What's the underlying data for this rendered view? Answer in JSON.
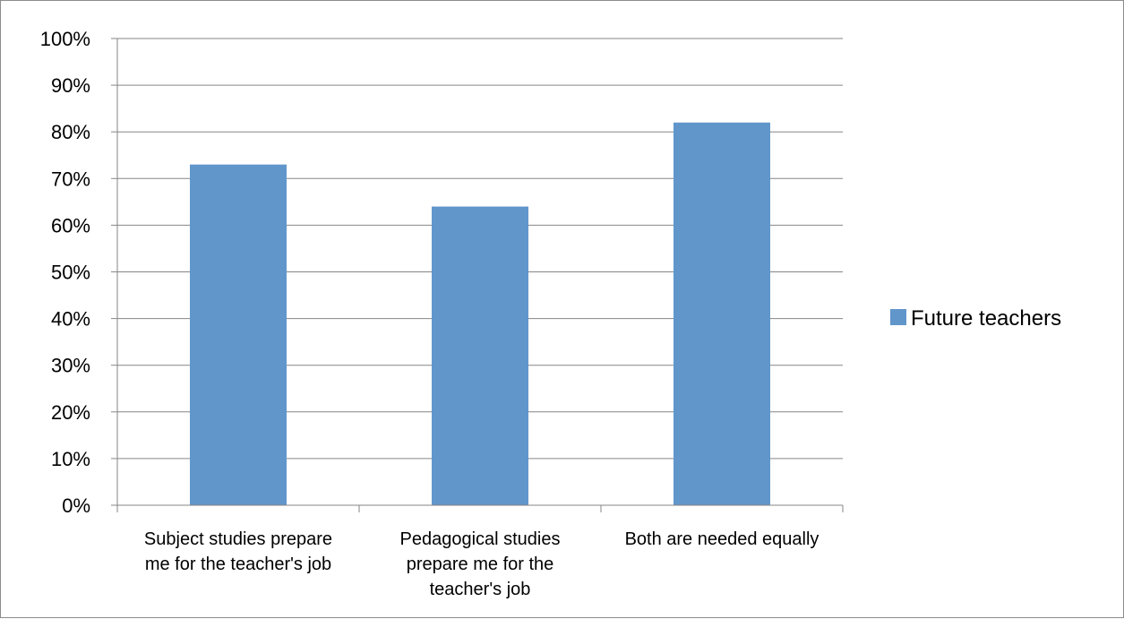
{
  "chart_data": {
    "type": "bar",
    "title": "",
    "xlabel": "",
    "ylabel": "",
    "categories": [
      "Subject studies prepare me for the teacher's job",
      "Pedagogical studies prepare me for the teacher's job",
      "Both are needed equally"
    ],
    "category_label_lines": [
      [
        "Subject studies prepare",
        "me for the teacher's job"
      ],
      [
        "Pedagogical studies",
        "prepare me for the",
        "teacher's job"
      ],
      [
        "Both are needed equally"
      ]
    ],
    "series": [
      {
        "name": "Future teachers",
        "values": [
          73,
          64,
          82
        ],
        "color": "#6196CB"
      }
    ],
    "ylim": [
      0,
      100
    ],
    "yticks": [
      0,
      10,
      20,
      30,
      40,
      50,
      60,
      70,
      80,
      90,
      100
    ],
    "ytick_format": "percent",
    "grid": true,
    "legend": {
      "position": "right",
      "entries": [
        "Future teachers"
      ]
    }
  }
}
